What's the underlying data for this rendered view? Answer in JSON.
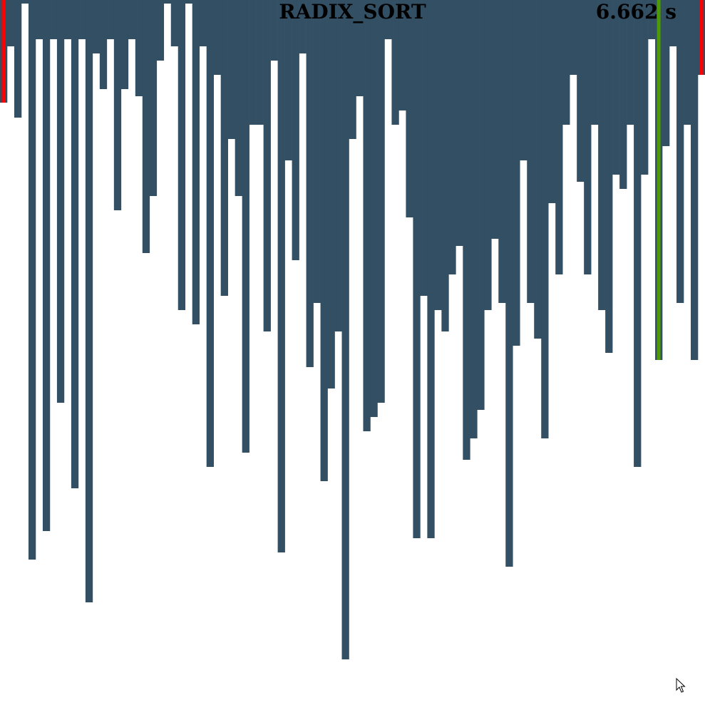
{
  "app": {
    "title": "RADIX_SORT",
    "elapsed_time": "6.662 s"
  },
  "colors": {
    "background": "#ffffff",
    "bar": "#324f63",
    "highlight_compare": "#ff0000",
    "highlight_current": "#4e9a06"
  },
  "visualization": {
    "value_max": 989,
    "bar_count": 99,
    "bar_values": [
      144,
      65,
      165,
      5,
      785,
      55,
      745,
      55,
      565,
      55,
      685,
      55,
      845,
      75,
      125,
      55,
      295,
      125,
      55,
      135,
      355,
      275,
      85,
      5,
      65,
      435,
      5,
      455,
      65,
      655,
      105,
      415,
      195,
      275,
      635,
      175,
      175,
      465,
      85,
      775,
      225,
      365,
      75,
      515,
      425,
      675,
      545,
      465,
      925,
      195,
      135,
      605,
      585,
      565,
      55,
      175,
      155,
      305,
      755,
      415,
      755,
      435,
      465,
      385,
      345,
      645,
      615,
      575,
      435,
      335,
      425,
      795,
      485,
      225,
      425,
      475,
      615,
      285,
      385,
      175,
      105,
      255,
      385,
      175,
      435,
      495,
      245,
      265,
      175,
      655,
      245,
      55,
      505,
      205,
      65,
      425,
      175,
      505,
      105
    ],
    "overlay_bars": [
      {
        "index": 0,
        "value": 144,
        "role": "compare"
      },
      {
        "index": 92,
        "value": 505,
        "role": "current"
      },
      {
        "index": 98,
        "value": 105,
        "role": "compare"
      }
    ]
  },
  "icons": {
    "cursor": "mouse-pointer-icon"
  }
}
